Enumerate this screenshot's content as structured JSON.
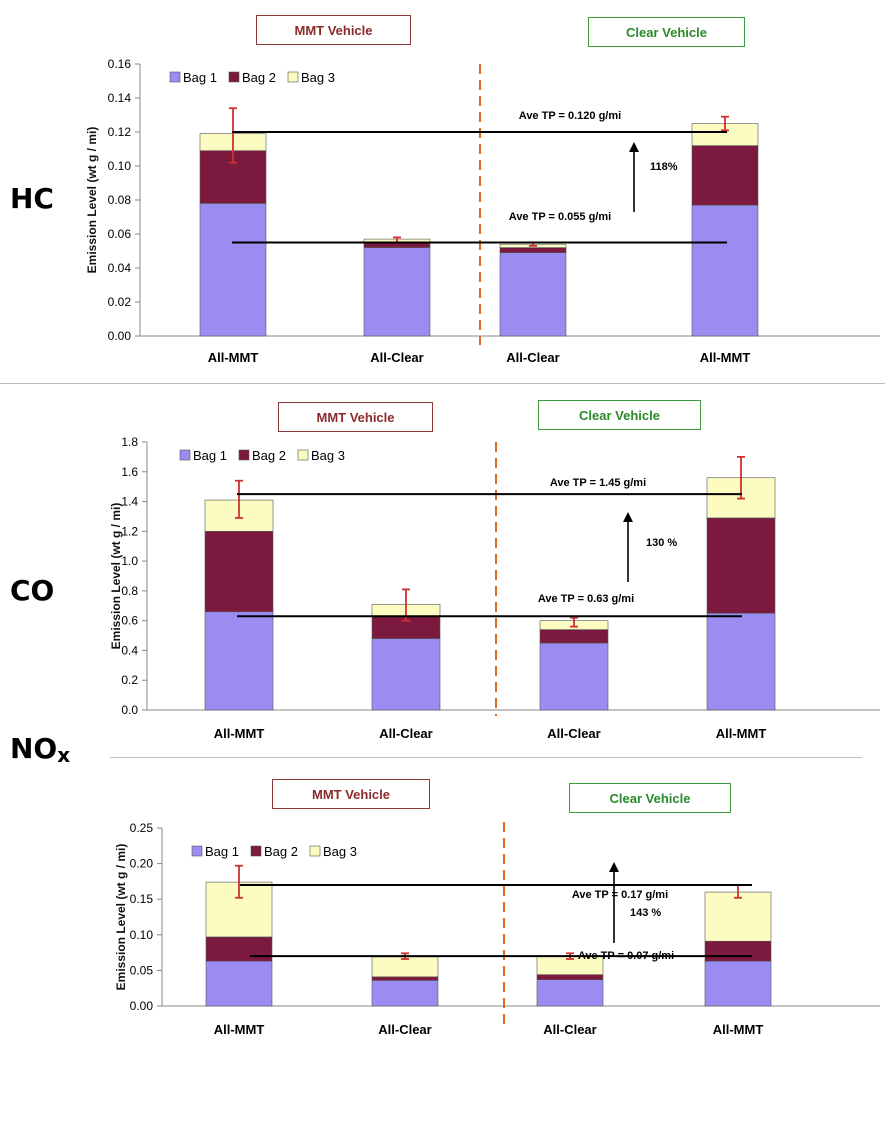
{
  "colors": {
    "bag1": "#9a8cf0",
    "bag2": "#7b1a3e",
    "bag3": "#fcfcc2",
    "error_bar": "#d03030",
    "divider": "#e06a2a",
    "mmt_label": "#8b2b2b",
    "clear_label": "#2a8a2a"
  },
  "legend": {
    "bag1": "Bag 1",
    "bag2": "Bag 2",
    "bag3": "Bag 3"
  },
  "chart_data": [
    {
      "type": "bar",
      "stacked": true,
      "pollutant": "HC",
      "ylabel": "Emission Level (wt g / mi)",
      "ylim": [
        0,
        0.16
      ],
      "yticks": [
        "0.00",
        "0.02",
        "0.04",
        "0.06",
        "0.08",
        "0.10",
        "0.12",
        "0.14",
        "0.16"
      ],
      "categories": [
        "All-MMT",
        "All-Clear",
        "All-Clear",
        "All-MMT"
      ],
      "vehicle_labels": {
        "mmt": "MMT Vehicle",
        "clear": "Clear Vehicle"
      },
      "series": [
        {
          "name": "Bag 1",
          "values": [
            0.078,
            0.052,
            0.049,
            0.077
          ]
        },
        {
          "name": "Bag 2",
          "values": [
            0.031,
            0.003,
            0.003,
            0.035
          ]
        },
        {
          "name": "Bag 3",
          "values": [
            0.01,
            0.002,
            0.002,
            0.013
          ]
        }
      ],
      "error_bars": [
        {
          "low": 0.102,
          "high": 0.134
        },
        {
          "low": 0.055,
          "high": 0.058
        },
        {
          "low": 0.053,
          "high": 0.055
        },
        {
          "low": 0.121,
          "high": 0.129
        }
      ],
      "annotations": {
        "high_line": {
          "label": "Ave TP = 0.120 g/mi",
          "value": 0.12
        },
        "low_line": {
          "label": "Ave TP = 0.055 g/mi",
          "value": 0.055
        },
        "increase": "118%"
      }
    },
    {
      "type": "bar",
      "stacked": true,
      "pollutant": "CO",
      "ylabel": "Emission Level (wt g / mi)",
      "ylim": [
        0,
        1.8
      ],
      "yticks": [
        "0.0",
        "0.2",
        "0.4",
        "0.6",
        "0.8",
        "1.0",
        "1.2",
        "1.4",
        "1.6",
        "1.8"
      ],
      "categories": [
        "All-MMT",
        "All-Clear",
        "All-Clear",
        "All-MMT"
      ],
      "vehicle_labels": {
        "mmt": "MMT Vehicle",
        "clear": "Clear Vehicle"
      },
      "series": [
        {
          "name": "Bag 1",
          "values": [
            0.66,
            0.48,
            0.45,
            0.65
          ]
        },
        {
          "name": "Bag 2",
          "values": [
            0.54,
            0.15,
            0.09,
            0.64
          ]
        },
        {
          "name": "Bag 3",
          "values": [
            0.21,
            0.08,
            0.06,
            0.27
          ]
        }
      ],
      "error_bars": [
        {
          "low": 1.29,
          "high": 1.54
        },
        {
          "low": 0.6,
          "high": 0.81
        },
        {
          "low": 0.56,
          "high": 0.62
        },
        {
          "low": 1.42,
          "high": 1.7
        }
      ],
      "annotations": {
        "high_line": {
          "label": "Ave TP = 1.45 g/mi",
          "value": 1.45
        },
        "low_line": {
          "label": "Ave TP = 0.63 g/mi",
          "value": 0.63
        },
        "increase": "130 %"
      }
    },
    {
      "type": "bar",
      "stacked": true,
      "pollutant": "NOx",
      "ylabel": "Emission Level (wt g / mi)",
      "ylim": [
        0,
        0.25
      ],
      "yticks": [
        "0.00",
        "0.05",
        "0.10",
        "0.15",
        "0.20",
        "0.25"
      ],
      "categories": [
        "All-MMT",
        "All-Clear",
        "All-Clear",
        "All-MMT"
      ],
      "vehicle_labels": {
        "mmt": "MMT Vehicle",
        "clear": "Clear Vehicle"
      },
      "series": [
        {
          "name": "Bag 1",
          "values": [
            0.063,
            0.036,
            0.037,
            0.063
          ]
        },
        {
          "name": "Bag 2",
          "values": [
            0.034,
            0.005,
            0.007,
            0.028
          ]
        },
        {
          "name": "Bag 3",
          "values": [
            0.077,
            0.028,
            0.026,
            0.069
          ]
        }
      ],
      "error_bars": [
        {
          "low": 0.152,
          "high": 0.197
        },
        {
          "low": 0.066,
          "high": 0.074
        },
        {
          "low": 0.066,
          "high": 0.074
        },
        {
          "low": 0.152,
          "high": 0.17
        }
      ],
      "annotations": {
        "high_line": {
          "label": "Ave TP = 0.17 g/mi",
          "value": 0.17
        },
        "low_line": {
          "label": "Ave TP = 0.07 g/mi",
          "value": 0.07
        },
        "increase": "143 %"
      }
    }
  ]
}
